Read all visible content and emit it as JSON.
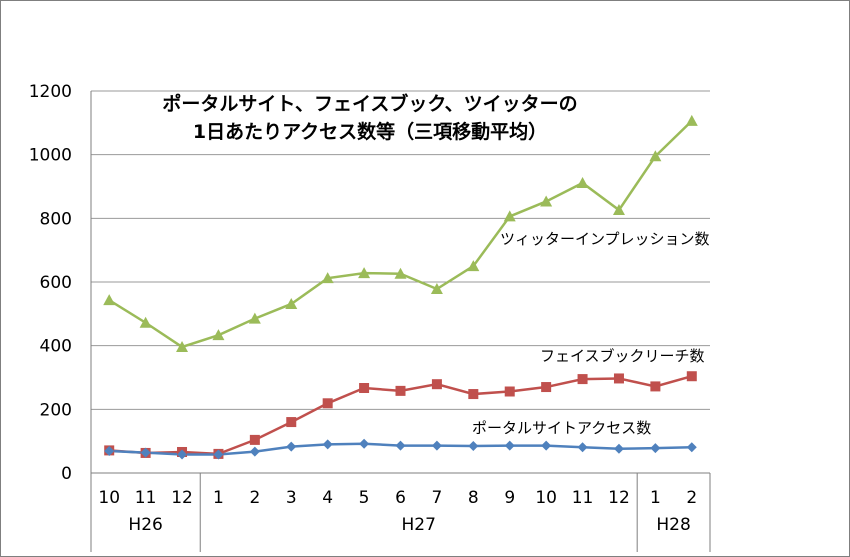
{
  "chart_data": {
    "type": "line",
    "title_lines": [
      "ポータルサイト、フェイスブック、ツイッターの",
      "1日あたりアクセス数等（三項移動平均）"
    ],
    "ylim": [
      0,
      1200
    ],
    "yticks": [
      "0",
      "200",
      "400",
      "600",
      "800",
      "1000",
      "1200"
    ],
    "categories": [
      "10",
      "11",
      "12",
      "1",
      "2",
      "3",
      "4",
      "5",
      "6",
      "7",
      "8",
      "9",
      "10",
      "11",
      "12",
      "1",
      "2"
    ],
    "year_groups": [
      {
        "label": "H26",
        "count": 3
      },
      {
        "label": "H27",
        "count": 12
      },
      {
        "label": "H28",
        "count": 2
      }
    ],
    "grid": true,
    "legend": "inline labels next to each series",
    "series": [
      {
        "name": "ツィッターインプレッション数",
        "color": "#9bbb59",
        "marker": "triangle",
        "values": [
          543,
          472,
          396,
          433,
          485,
          531,
          612,
          628,
          626,
          578,
          650,
          806,
          853,
          911,
          826,
          995,
          1106
        ]
      },
      {
        "name": "フェイスブックリーチ数",
        "color": "#c0504d",
        "marker": "square",
        "values": [
          71,
          63,
          66,
          60,
          104,
          160,
          219,
          267,
          258,
          279,
          248,
          256,
          270,
          295,
          297,
          272,
          304
        ]
      },
      {
        "name": "ポータルサイトアクセス数",
        "color": "#4f81bd",
        "marker": "diamond",
        "values": [
          69,
          64,
          58,
          58,
          67,
          83,
          90,
          92,
          86,
          86,
          85,
          86,
          86,
          81,
          76,
          78,
          81
        ]
      }
    ]
  }
}
